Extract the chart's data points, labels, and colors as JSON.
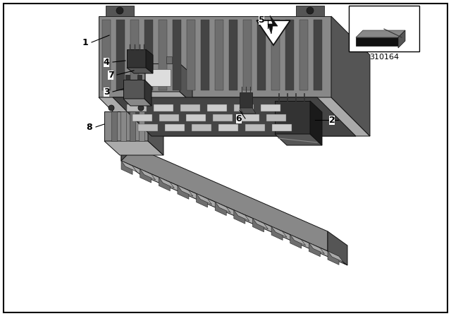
{
  "background_color": "#ffffff",
  "part_number": "310164",
  "colors": {
    "c1": "#6e6e6e",
    "c2": "#888888",
    "c3": "#aaaaaa",
    "c4": "#555555",
    "c5": "#333333",
    "c6": "#444444",
    "c7": "#bbbbbb",
    "c8": "#999999",
    "white": "#ffffff",
    "black": "#111111"
  }
}
